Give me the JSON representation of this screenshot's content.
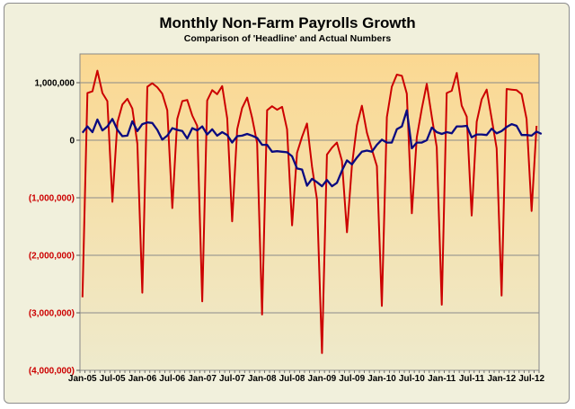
{
  "chart_data": {
    "type": "line",
    "title": "Monthly Non-Farm Payrolls Growth",
    "subtitle": "Comparison of 'Headline' and Actual Numbers",
    "xlabel": "",
    "ylabel": "",
    "ylim": [
      -4000000,
      1500000
    ],
    "grid": true,
    "y_ticks": [
      {
        "value": 1000000,
        "label": "1,000,000"
      },
      {
        "value": 0,
        "label": "0"
      },
      {
        "value": -1000000,
        "label": "(1,000,000)"
      },
      {
        "value": -2000000,
        "label": "(2,000,000)"
      },
      {
        "value": -3000000,
        "label": "(3,000,000)"
      },
      {
        "value": -4000000,
        "label": "(4,000,000)"
      }
    ],
    "x_tick_labels": [
      "Jan-05",
      "Jul-05",
      "Jan-06",
      "Jul-06",
      "Jan-07",
      "Jul-07",
      "Jan-08",
      "Jul-08",
      "Jan-09",
      "Jul-09",
      "Jan-10",
      "Jul-10",
      "Jan-11",
      "Jul-11",
      "Jan-12",
      "Jul-12"
    ],
    "x_start": "Jan-05",
    "colors": {
      "actual": "#cc0000",
      "headline": "#0a0a80",
      "negative_label": "#cc0000",
      "bg_top": "#fbd891",
      "bg_bottom": "#eeeacc"
    },
    "series": [
      {
        "key": "actual",
        "values": [
          -2730000,
          820000,
          850000,
          1210000,
          820000,
          680000,
          -1070000,
          310000,
          620000,
          720000,
          550000,
          -60000,
          -2650000,
          930000,
          990000,
          920000,
          810000,
          520000,
          -1180000,
          370000,
          680000,
          700000,
          430000,
          250000,
          -2800000,
          690000,
          870000,
          800000,
          940000,
          380000,
          -1410000,
          190000,
          560000,
          740000,
          390000,
          -50000,
          -3030000,
          520000,
          590000,
          530000,
          580000,
          190000,
          -1480000,
          -220000,
          60000,
          290000,
          -460000,
          -1030000,
          -3700000,
          -250000,
          -130000,
          -40000,
          -360000,
          -1600000,
          -440000,
          260000,
          600000,
          130000,
          -160000,
          -450000,
          -2880000,
          400000,
          930000,
          1140000,
          1120000,
          810000,
          -1270000,
          50000,
          550000,
          980000,
          410000,
          -120000,
          -2860000,
          820000,
          860000,
          1170000,
          600000,
          410000,
          -1310000,
          320000,
          710000,
          880000,
          380000,
          -140000,
          -2700000,
          890000,
          880000,
          870000,
          800000,
          370000,
          -1230000,
          250000
        ],
        "width": 2
      },
      {
        "key": "headline",
        "values": [
          130000,
          240000,
          140000,
          360000,
          170000,
          240000,
          370000,
          180000,
          70000,
          80000,
          330000,
          160000,
          280000,
          310000,
          300000,
          180000,
          10000,
          80000,
          210000,
          180000,
          160000,
          30000,
          210000,
          170000,
          240000,
          100000,
          190000,
          80000,
          140000,
          90000,
          -40000,
          70000,
          80000,
          110000,
          80000,
          40000,
          -80000,
          -80000,
          -200000,
          -190000,
          -200000,
          -210000,
          -280000,
          -490000,
          -510000,
          -790000,
          -670000,
          -730000,
          -800000,
          -690000,
          -800000,
          -740000,
          -530000,
          -350000,
          -420000,
          -300000,
          -200000,
          -180000,
          -200000,
          -80000,
          10000,
          -40000,
          -40000,
          190000,
          240000,
          520000,
          -140000,
          -40000,
          -40000,
          0,
          220000,
          140000,
          110000,
          140000,
          120000,
          240000,
          240000,
          250000,
          50000,
          100000,
          100000,
          90000,
          200000,
          120000,
          160000,
          230000,
          280000,
          250000,
          90000,
          90000,
          80000,
          150000,
          110000
        ],
        "width": 2.3
      }
    ]
  }
}
